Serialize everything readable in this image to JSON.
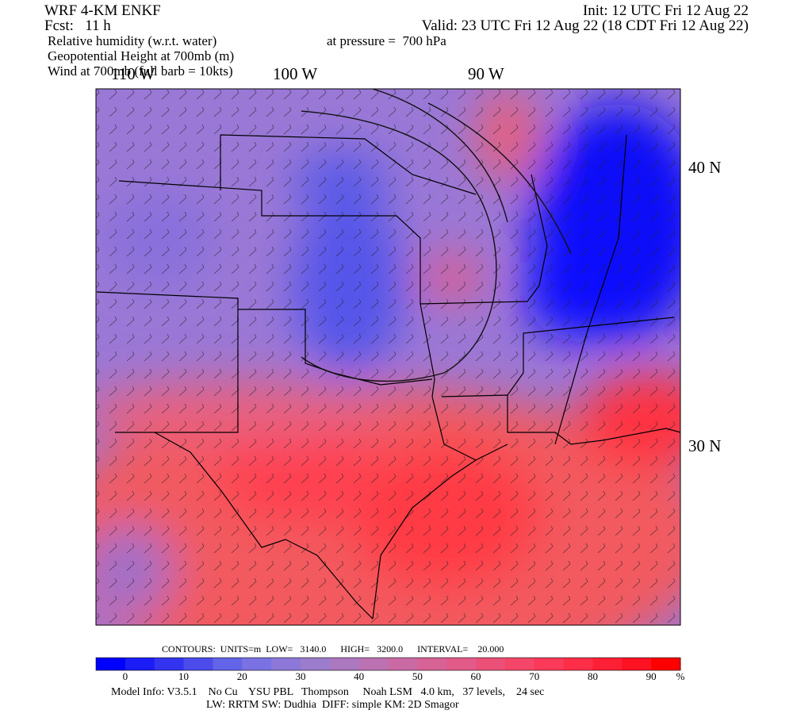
{
  "header": {
    "model": "WRF 4-KM ENKF",
    "forecast": "Fcst:   11 h",
    "fields": [
      "Relative humidity (w.r.t. water)",
      "Geopotential Height at 700mb (m)",
      "Wind at 700mb (full barb = 10kts)"
    ],
    "init": "Init: 12 UTC Fri 12 Aug 22",
    "valid": "Valid: 23 UTC Fri 12 Aug 22 (18 CDT Fri 12 Aug 22)",
    "pressure": "at pressure =  700 hPa"
  },
  "map": {
    "longitude_labels": [
      "110 W",
      "100 W",
      "90 W"
    ],
    "latitude_labels": [
      "40 N",
      "30 N"
    ]
  },
  "contours": "CONTOURS:  UNITS=m  LOW=   3140.0      HIGH=   3200.0      INTERVAL=    20.000",
  "colorbar": {
    "colors": [
      "#0000ff",
      "#1c1cf6",
      "#3434f0",
      "#4c4cec",
      "#6464e8",
      "#7a72e2",
      "#8c78d8",
      "#9c7ccc",
      "#ac78c0",
      "#bc72b2",
      "#ca6aa4",
      "#d66296",
      "#e25a88",
      "#ec5078",
      "#f44668",
      "#fa3a58",
      "#ff2e48",
      "#ff2036",
      "#ff1222",
      "#ff0000"
    ],
    "labels": [
      0,
      10,
      20,
      30,
      40,
      50,
      60,
      70,
      80,
      90
    ],
    "unit": "%"
  },
  "footer": [
    "Model Info: V3.5.1    No Cu    YSU PBL   Thompson     Noah LSM   4.0 km,   37 levels,    24 sec",
    "LW: RRTM SW: Dudhia  DIFF: simple KM: 2D Smagor"
  ]
}
